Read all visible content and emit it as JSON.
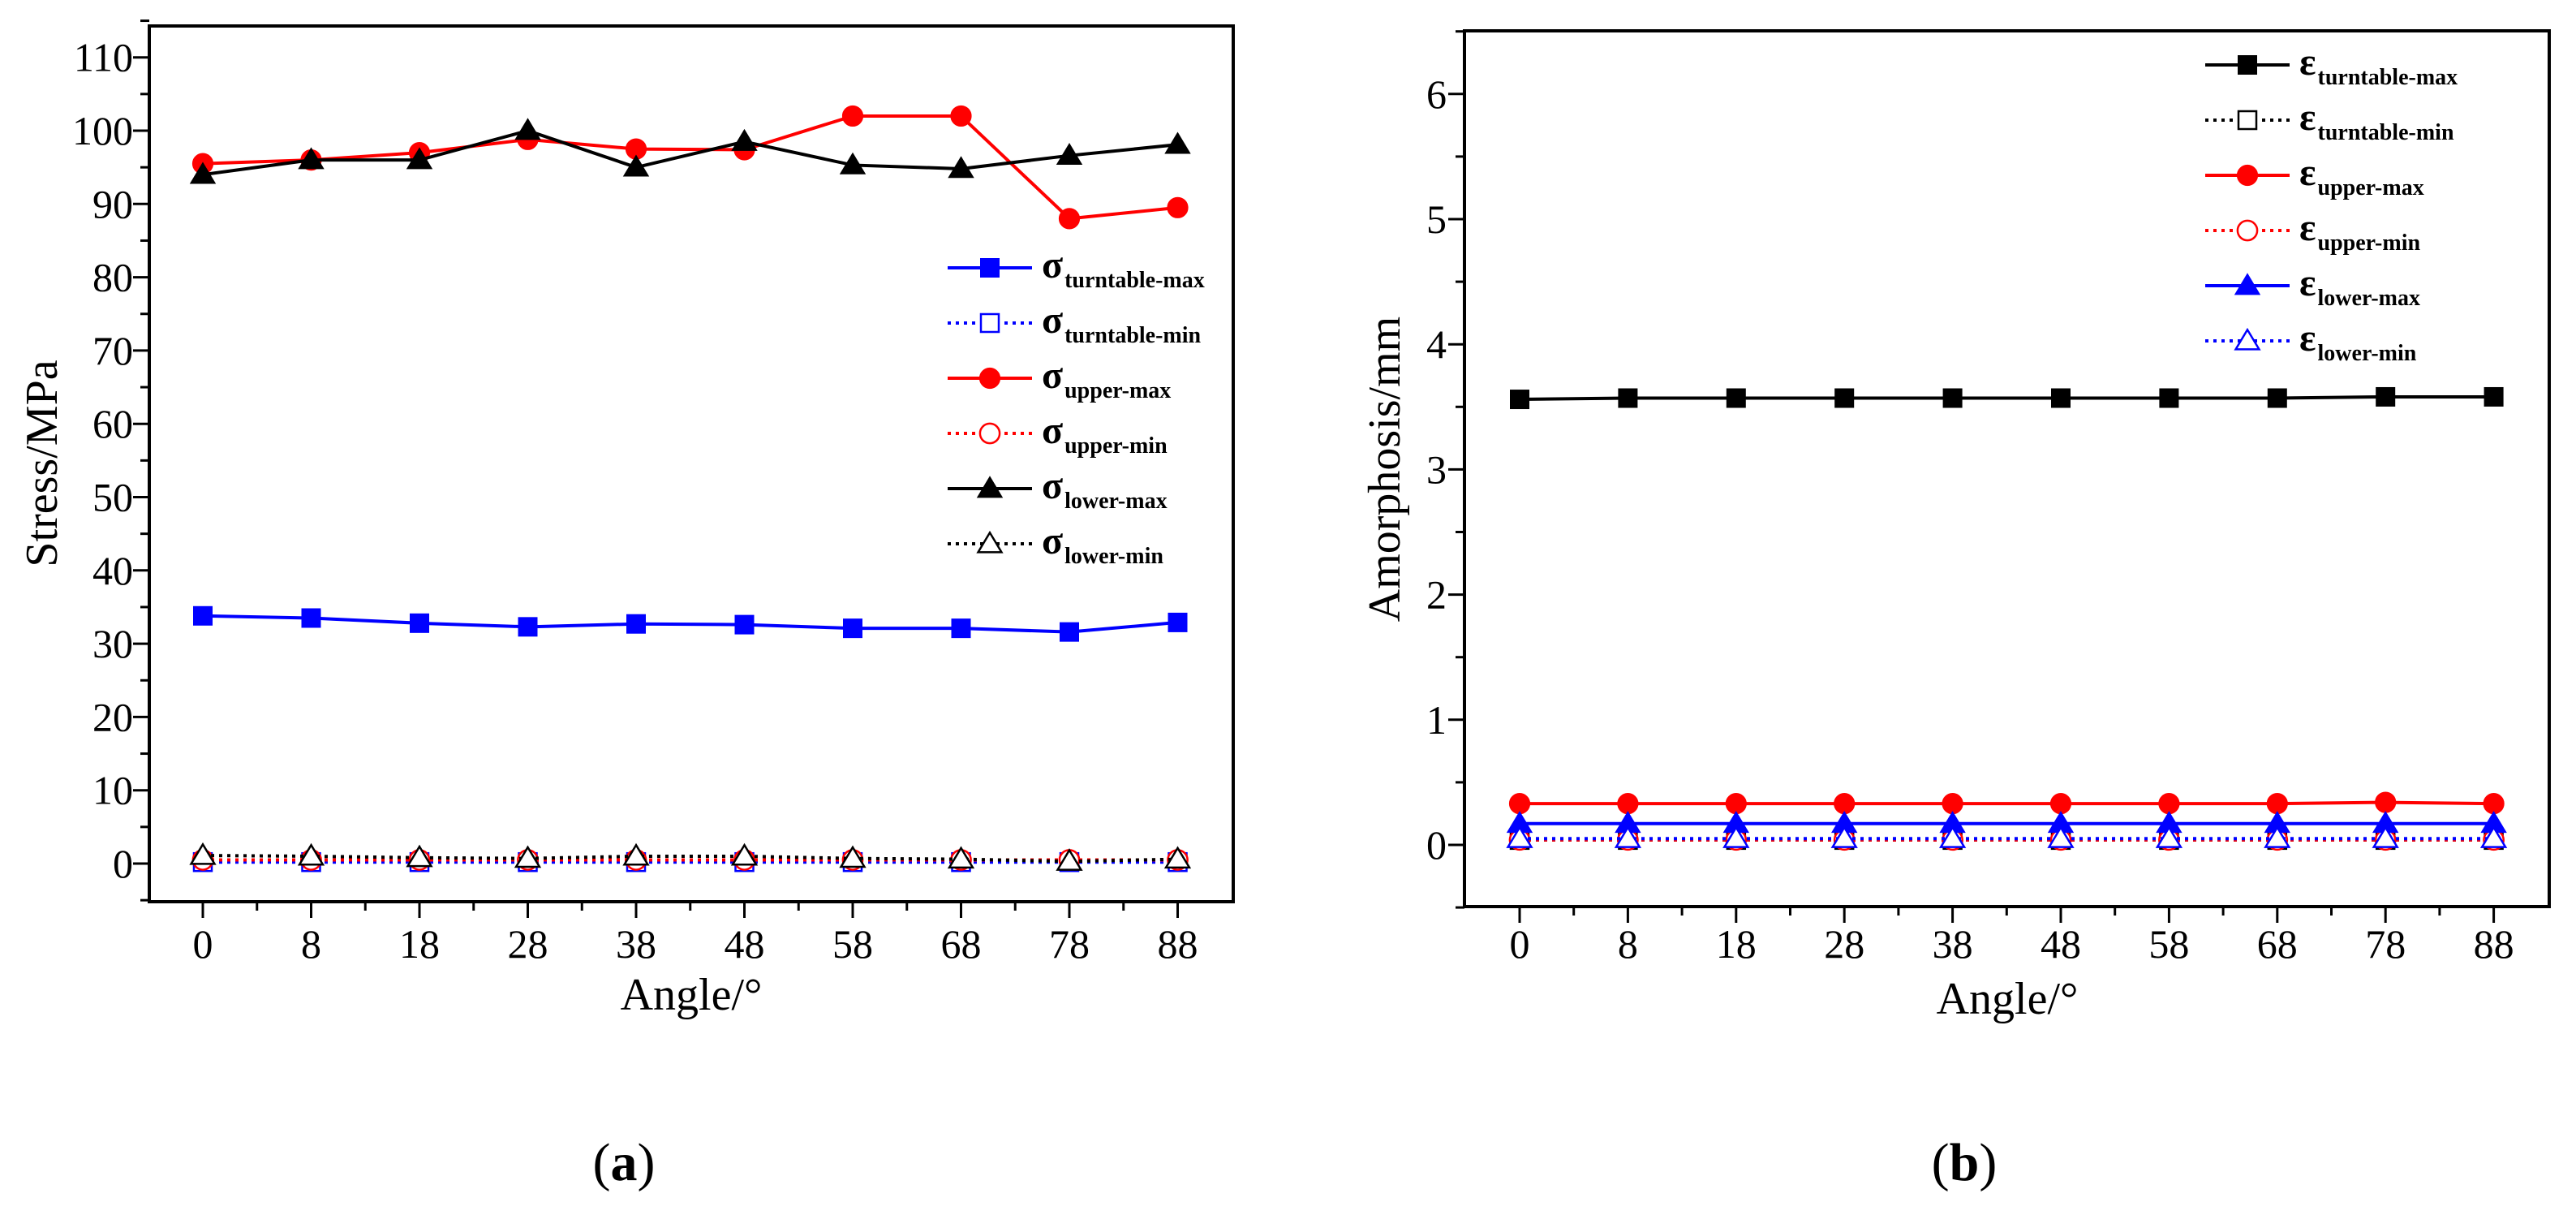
{
  "chart_data": [
    {
      "type": "line",
      "panel_label": "a",
      "xlabel": "Angle/°",
      "ylabel": "Stress/MPa",
      "categories": [
        "0",
        "8",
        "18",
        "28",
        "38",
        "48",
        "58",
        "68",
        "78",
        "88"
      ],
      "ylim": [
        -5,
        115
      ],
      "yticks": [
        "0",
        "10",
        "20",
        "30",
        "40",
        "50",
        "60",
        "70",
        "80",
        "90",
        "100",
        "110"
      ],
      "legend_position": "center-right",
      "series": [
        {
          "symbol": "σ",
          "subscript": "turntable-max",
          "color": "#0000ff",
          "line": "solid",
          "marker": "square",
          "filled": true,
          "values": [
            33.8,
            33.5,
            32.8,
            32.3,
            32.7,
            32.6,
            32.1,
            32.1,
            31.6,
            32.9
          ]
        },
        {
          "symbol": "σ",
          "subscript": "turntable-min",
          "color": "#0000ff",
          "line": "dotted",
          "marker": "square",
          "filled": false,
          "values": [
            0.2,
            0.2,
            0.2,
            0.2,
            0.2,
            0.2,
            0.2,
            0.2,
            0.2,
            0.2
          ]
        },
        {
          "symbol": "σ",
          "subscript": "upper-max",
          "color": "#ff0000",
          "line": "solid",
          "marker": "circle",
          "filled": true,
          "values": [
            95.5,
            96.0,
            97.0,
            98.8,
            97.5,
            97.4,
            102.0,
            102.0,
            88.0,
            89.5
          ]
        },
        {
          "symbol": "σ",
          "subscript": "upper-min",
          "color": "#ff0000",
          "line": "dotted",
          "marker": "circle",
          "filled": false,
          "values": [
            0.5,
            0.5,
            0.5,
            0.5,
            0.5,
            0.5,
            0.5,
            0.5,
            0.5,
            0.5
          ]
        },
        {
          "symbol": "σ",
          "subscript": "lower-max",
          "color": "#000000",
          "line": "solid",
          "marker": "triangle",
          "filled": true,
          "values": [
            94.0,
            96.0,
            96.0,
            100.0,
            95.0,
            98.5,
            95.3,
            94.8,
            96.6,
            98.1
          ]
        },
        {
          "symbol": "σ",
          "subscript": "lower-min",
          "color": "#000000",
          "line": "dotted",
          "marker": "triangle",
          "filled": false,
          "values": [
            1.1,
            1.0,
            0.8,
            0.7,
            1.0,
            1.0,
            0.7,
            0.6,
            0.3,
            0.6
          ]
        }
      ]
    },
    {
      "type": "line",
      "panel_label": "b",
      "xlabel": "Angle/°",
      "ylabel": "Amorphosis/mm",
      "categories": [
        "0",
        "8",
        "18",
        "28",
        "38",
        "48",
        "58",
        "68",
        "78",
        "88"
      ],
      "ylim": [
        -0.5,
        6.5
      ],
      "yticks": [
        "0",
        "1",
        "2",
        "3",
        "4",
        "5",
        "6"
      ],
      "legend_position": "top-right",
      "series": [
        {
          "symbol": "ε",
          "subscript": "turntable-max",
          "color": "#000000",
          "line": "solid",
          "marker": "square",
          "filled": true,
          "values": [
            3.56,
            3.57,
            3.57,
            3.57,
            3.57,
            3.57,
            3.57,
            3.57,
            3.58,
            3.58
          ]
        },
        {
          "symbol": "ε",
          "subscript": "turntable-min",
          "color": "#000000",
          "line": "dotted",
          "marker": "square",
          "filled": false,
          "values": [
            0.04,
            0.04,
            0.04,
            0.04,
            0.04,
            0.04,
            0.04,
            0.04,
            0.04,
            0.04
          ]
        },
        {
          "symbol": "ε",
          "subscript": "upper-max",
          "color": "#ff0000",
          "line": "solid",
          "marker": "circle",
          "filled": true,
          "values": [
            0.33,
            0.33,
            0.33,
            0.33,
            0.33,
            0.33,
            0.33,
            0.33,
            0.34,
            0.33
          ]
        },
        {
          "symbol": "ε",
          "subscript": "upper-min",
          "color": "#ff0000",
          "line": "dotted",
          "marker": "circle",
          "filled": false,
          "values": [
            0.04,
            0.04,
            0.04,
            0.04,
            0.04,
            0.04,
            0.04,
            0.04,
            0.04,
            0.04
          ]
        },
        {
          "symbol": "ε",
          "subscript": "lower-max",
          "color": "#0000ff",
          "line": "solid",
          "marker": "triangle",
          "filled": true,
          "values": [
            0.17,
            0.17,
            0.17,
            0.17,
            0.17,
            0.17,
            0.17,
            0.17,
            0.17,
            0.17
          ]
        },
        {
          "symbol": "ε",
          "subscript": "lower-min",
          "color": "#0000ff",
          "line": "dotted",
          "marker": "triangle",
          "filled": false,
          "values": [
            0.05,
            0.05,
            0.05,
            0.05,
            0.05,
            0.05,
            0.05,
            0.05,
            0.05,
            0.05
          ]
        }
      ]
    }
  ]
}
